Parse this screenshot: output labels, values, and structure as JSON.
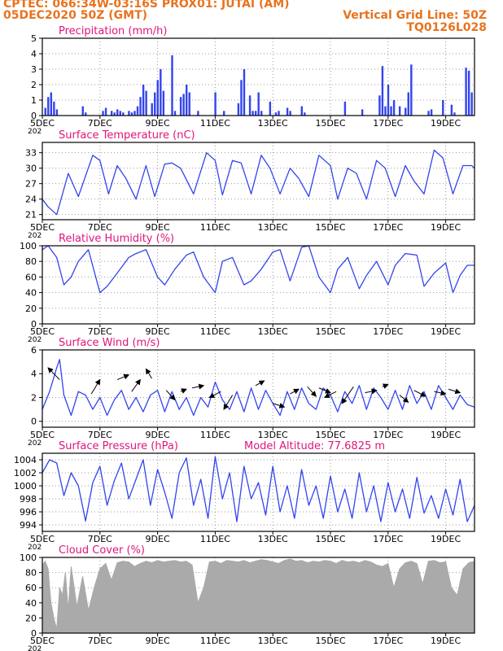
{
  "header": {
    "line1_left": "CPTEC:    066:34W-03:16S   PROX01: JUTAI (AM)",
    "line2_left": "05DEC2020 50Z (GMT)",
    "line2_right": "Vertical Grid Line: 50Z",
    "line3_right": "TQ0126L028"
  },
  "colors": {
    "header": "#e8731f",
    "panel_title": "#e0157b",
    "series": "#3344ee",
    "cloud": "#aaaaaa",
    "wind_arrow": "#000000"
  },
  "x_axis": {
    "tick_labels": [
      "5DEC",
      "7DEC",
      "9DEC",
      "11DEC",
      "13DEC",
      "15DEC",
      "17DEC",
      "19DEC"
    ],
    "tick_positions_days": [
      0,
      2,
      4,
      6,
      8,
      10,
      12,
      14
    ],
    "range_days": [
      0,
      15
    ],
    "clipped_label": "202"
  },
  "chart_data": [
    {
      "id": "precip",
      "type": "bar",
      "title": "Precipitation   (mm/h)",
      "ylim": [
        0,
        5
      ],
      "yticks": [
        "0",
        "1",
        "2",
        "3",
        "4",
        "5"
      ],
      "ytick_values": [
        0,
        1,
        2,
        3,
        4,
        5
      ],
      "x": [
        0.1,
        0.2,
        0.3,
        0.4,
        0.5,
        1.4,
        1.5,
        2.1,
        2.2,
        2.4,
        2.5,
        2.6,
        2.7,
        2.8,
        3.0,
        3.1,
        3.2,
        3.3,
        3.4,
        3.5,
        3.6,
        3.8,
        3.9,
        4.0,
        4.1,
        4.2,
        4.5,
        4.6,
        4.8,
        4.9,
        5.0,
        5.1,
        5.4,
        6.0,
        6.3,
        6.8,
        6.9,
        7.0,
        7.2,
        7.3,
        7.4,
        7.5,
        7.6,
        7.9,
        8.1,
        8.2,
        8.5,
        8.6,
        9.0,
        9.1,
        10.5,
        11.1,
        11.7,
        11.8,
        11.9,
        12.0,
        12.1,
        12.2,
        12.4,
        12.6,
        12.7,
        12.8,
        13.4,
        13.5,
        13.9,
        14.2,
        14.3,
        14.7,
        14.8,
        14.9
      ],
      "values": [
        0.5,
        1.2,
        1.5,
        0.9,
        0.4,
        0.6,
        0.2,
        0.3,
        0.5,
        0.3,
        0.2,
        0.4,
        0.3,
        0.2,
        0.3,
        0.2,
        0.3,
        0.6,
        1.2,
        2.0,
        1.6,
        0.8,
        1.5,
        2.3,
        3.0,
        1.6,
        3.9,
        0.3,
        1.2,
        1.4,
        2.0,
        1.5,
        0.3,
        1.5,
        0.3,
        0.8,
        2.3,
        3.0,
        1.3,
        0.3,
        0.3,
        1.5,
        0.3,
        0.9,
        0.2,
        0.3,
        0.5,
        0.3,
        0.6,
        0.2,
        0.9,
        0.4,
        1.3,
        3.2,
        0.6,
        2.0,
        0.6,
        1.0,
        0.6,
        0.5,
        1.5,
        3.3,
        0.3,
        0.4,
        1.0,
        0.7,
        0.2,
        3.1,
        2.9,
        1.5
      ],
      "grid": true
    },
    {
      "id": "temp",
      "type": "line",
      "title": "Surface Temperature  (nC)",
      "ylim": [
        20,
        35
      ],
      "yticks": [
        "21",
        "24",
        "27",
        "30",
        "33"
      ],
      "ytick_values": [
        21,
        24,
        27,
        30,
        33
      ],
      "x": [
        0.0,
        0.2,
        0.5,
        0.9,
        1.25,
        1.75,
        2.0,
        2.3,
        2.6,
        2.9,
        3.25,
        3.6,
        3.9,
        4.25,
        4.5,
        4.8,
        5.25,
        5.7,
        6.0,
        6.25,
        6.6,
        6.9,
        7.25,
        7.6,
        7.9,
        8.25,
        8.6,
        8.9,
        9.25,
        9.6,
        10.0,
        10.25,
        10.6,
        10.9,
        11.25,
        11.6,
        11.9,
        12.25,
        12.6,
        12.9,
        13.25,
        13.6,
        13.9,
        14.25,
        14.6,
        14.9,
        15.0
      ],
      "values": [
        24,
        22.5,
        21,
        29,
        24.5,
        32.5,
        31.5,
        25,
        30.5,
        28,
        24,
        30.5,
        24.5,
        30.8,
        31,
        30,
        25,
        33,
        31.5,
        24.8,
        31.5,
        31,
        25,
        32.5,
        30,
        25,
        30,
        28,
        24.5,
        32.5,
        30.5,
        24,
        30,
        29,
        24,
        31.5,
        30,
        24.5,
        30.5,
        27.5,
        25,
        33.5,
        32,
        25,
        30.5,
        30.5,
        30
      ],
      "grid": true
    },
    {
      "id": "rh",
      "type": "line",
      "title": "Relative Humidity  (%)",
      "ylim": [
        0,
        100
      ],
      "yticks": [
        "0",
        "20",
        "40",
        "60",
        "80",
        "100"
      ],
      "ytick_values": [
        0,
        20,
        40,
        60,
        80,
        100
      ],
      "x": [
        0.0,
        0.2,
        0.5,
        0.75,
        1.0,
        1.25,
        1.6,
        2.0,
        2.25,
        2.6,
        3.0,
        3.25,
        3.6,
        4.0,
        4.25,
        4.6,
        5.0,
        5.25,
        5.6,
        6.0,
        6.25,
        6.6,
        7.0,
        7.25,
        7.6,
        8.0,
        8.25,
        8.6,
        9.0,
        9.25,
        9.6,
        10.0,
        10.25,
        10.6,
        11.0,
        11.25,
        11.6,
        12.0,
        12.25,
        12.6,
        13.0,
        13.25,
        13.6,
        14.0,
        14.25,
        14.5,
        14.75,
        15.0
      ],
      "values": [
        95,
        100,
        85,
        50,
        60,
        80,
        95,
        40,
        48,
        65,
        85,
        90,
        95,
        60,
        50,
        70,
        88,
        92,
        60,
        40,
        80,
        85,
        50,
        55,
        70,
        92,
        95,
        55,
        98,
        100,
        60,
        40,
        70,
        85,
        45,
        62,
        80,
        50,
        75,
        90,
        88,
        48,
        65,
        78,
        40,
        62,
        75,
        75
      ],
      "grid": true
    },
    {
      "id": "wind",
      "type": "line",
      "title": "Surface Wind  (m/s)",
      "ylim": [
        -0.5,
        6
      ],
      "yticks": [
        "0",
        "2",
        "4",
        "6"
      ],
      "ytick_values": [
        0,
        2,
        4,
        6
      ],
      "x": [
        0.0,
        0.25,
        0.5,
        0.6,
        0.75,
        1.0,
        1.25,
        1.5,
        1.75,
        2.0,
        2.25,
        2.5,
        2.75,
        3.0,
        3.25,
        3.5,
        3.75,
        4.0,
        4.25,
        4.5,
        4.75,
        5.0,
        5.25,
        5.5,
        5.75,
        6.0,
        6.25,
        6.5,
        6.75,
        7.0,
        7.25,
        7.5,
        7.75,
        8.0,
        8.25,
        8.5,
        8.75,
        9.0,
        9.25,
        9.5,
        9.75,
        10.0,
        10.25,
        10.5,
        10.75,
        11.0,
        11.25,
        11.5,
        11.75,
        12.0,
        12.25,
        12.5,
        12.75,
        13.0,
        13.25,
        13.5,
        13.75,
        14.0,
        14.25,
        14.5,
        14.75,
        15.0
      ],
      "values": [
        1.0,
        2.5,
        4.5,
        5.2,
        2.2,
        0.5,
        2.5,
        2.2,
        1.0,
        2.0,
        0.5,
        1.8,
        2.6,
        1.0,
        2.0,
        0.8,
        2.2,
        2.6,
        0.8,
        2.5,
        1.0,
        2.0,
        0.5,
        2.0,
        1.2,
        3.3,
        1.8,
        1.0,
        2.5,
        0.8,
        2.8,
        1.0,
        2.6,
        1.5,
        0.5,
        2.5,
        1.0,
        2.8,
        1.5,
        1.0,
        2.8,
        2.2,
        0.8,
        2.5,
        1.5,
        3.0,
        1.0,
        2.8,
        2.0,
        1.0,
        2.6,
        1.0,
        3.0,
        1.5,
        2.5,
        1.0,
        3.0,
        2.0,
        1.0,
        2.2,
        1.4,
        1.2
      ],
      "arrow_x": [
        0.6,
        1.7,
        2.6,
        3.1,
        3.8,
        4.3,
        4.8,
        5.2,
        6.2,
        6.6,
        7.4,
        8.0,
        8.6,
        9.2,
        9.6,
        10.2,
        10.8,
        11.2,
        11.8,
        12.4,
        12.9,
        13.6,
        14.1
      ],
      "arrow_y": [
        3.5,
        2.3,
        3.5,
        2.5,
        3.6,
        2.6,
        2.5,
        2.8,
        2.5,
        2.2,
        3.0,
        1.5,
        2.3,
        2.9,
        2.8,
        2.5,
        2.9,
        2.4,
        2.9,
        2.2,
        2.6,
        2.5,
        2.7
      ],
      "arrow_dx": [
        -0.4,
        0.3,
        0.4,
        0.3,
        -0.2,
        0.3,
        0.2,
        0.4,
        -0.4,
        -0.3,
        0.3,
        0.4,
        0.3,
        0.3,
        0.4,
        -0.4,
        -0.4,
        0.4,
        0.2,
        0.3,
        0.4,
        0.4,
        0.4
      ],
      "arrow_dy": [
        1.0,
        1.2,
        0.4,
        1.0,
        0.8,
        -0.8,
        0.2,
        0.2,
        -0.5,
        -1.2,
        0.4,
        -0.3,
        0.4,
        -0.8,
        -0.4,
        -0.5,
        -1.4,
        0.2,
        0.2,
        -0.6,
        -0.5,
        -0.2,
        -0.3
      ],
      "grid": true
    },
    {
      "id": "press",
      "type": "line",
      "title": "Surface Pressure  (hPa)",
      "annotation": "Model Altitude:  77.6825  m",
      "ylim": [
        993,
        1005
      ],
      "yticks": [
        "994",
        "996",
        "998",
        "1000",
        "1002",
        "1004"
      ],
      "ytick_values": [
        994,
        996,
        998,
        1000,
        1002,
        1004
      ],
      "x": [
        0.0,
        0.25,
        0.5,
        0.75,
        1.0,
        1.25,
        1.5,
        1.75,
        2.0,
        2.25,
        2.5,
        2.75,
        3.0,
        3.25,
        3.5,
        3.75,
        4.0,
        4.25,
        4.5,
        4.75,
        5.0,
        5.25,
        5.5,
        5.75,
        6.0,
        6.25,
        6.5,
        6.75,
        7.0,
        7.25,
        7.5,
        7.75,
        8.0,
        8.25,
        8.5,
        8.75,
        9.0,
        9.25,
        9.5,
        9.75,
        10.0,
        10.25,
        10.5,
        10.75,
        11.0,
        11.25,
        11.5,
        11.75,
        12.0,
        12.25,
        12.5,
        12.75,
        13.0,
        13.25,
        13.5,
        13.75,
        14.0,
        14.25,
        14.5,
        14.75,
        15.0
      ],
      "values": [
        1002,
        1004,
        1003.5,
        998.5,
        1002,
        1000,
        994.6,
        1000.5,
        1003,
        997,
        1000.8,
        1003.5,
        998,
        1001,
        1004,
        997,
        1002.5,
        999,
        995,
        1002,
        1004.3,
        997,
        1001,
        995,
        1004.5,
        998,
        1002,
        994.5,
        1003,
        998,
        1000.5,
        995.5,
        1003,
        996,
        1000,
        995,
        1002.5,
        997,
        1000,
        995,
        1001.5,
        996,
        999.5,
        995,
        1002,
        996,
        1000,
        994.5,
        1000.5,
        996,
        999.5,
        995,
        1001.3,
        995.8,
        998.5,
        995,
        999.5,
        995.5,
        1001,
        994.5,
        997
      ],
      "grid": true
    },
    {
      "id": "cloud",
      "type": "area",
      "title": "Cloud Cover  (%)",
      "ylim": [
        0,
        100
      ],
      "yticks": [
        "0",
        "20",
        "40",
        "60",
        "80",
        "100"
      ],
      "ytick_values": [
        0,
        20,
        40,
        60,
        80,
        100
      ],
      "x": [
        0.0,
        0.1,
        0.2,
        0.3,
        0.4,
        0.5,
        0.6,
        0.7,
        0.8,
        0.9,
        1.0,
        1.2,
        1.4,
        1.6,
        1.8,
        2.0,
        2.2,
        2.4,
        2.6,
        2.8,
        3.0,
        3.2,
        3.4,
        3.6,
        3.8,
        4.0,
        4.2,
        4.4,
        4.6,
        4.8,
        5.0,
        5.2,
        5.4,
        5.6,
        5.8,
        6.0,
        6.2,
        6.4,
        6.6,
        6.8,
        7.0,
        7.2,
        7.4,
        7.6,
        7.8,
        8.0,
        8.2,
        8.4,
        8.6,
        8.8,
        9.0,
        9.2,
        9.4,
        9.6,
        9.8,
        10.0,
        10.2,
        10.4,
        10.6,
        10.8,
        11.0,
        11.2,
        11.4,
        11.6,
        11.8,
        12.0,
        12.2,
        12.4,
        12.6,
        12.8,
        13.0,
        13.2,
        13.4,
        13.6,
        13.8,
        14.0,
        14.2,
        14.4,
        14.6,
        14.8,
        15.0
      ],
      "values": [
        90,
        95,
        85,
        40,
        20,
        5,
        60,
        50,
        80,
        30,
        88,
        35,
        75,
        30,
        60,
        85,
        92,
        70,
        93,
        95,
        94,
        88,
        92,
        95,
        93,
        96,
        94,
        95,
        96,
        94,
        95,
        90,
        40,
        60,
        94,
        95,
        92,
        96,
        95,
        94,
        96,
        93,
        95,
        97,
        96,
        94,
        92,
        96,
        98,
        95,
        96,
        93,
        95,
        94,
        96,
        95,
        92,
        96,
        94,
        95,
        93,
        96,
        94,
        90,
        88,
        92,
        60,
        85,
        93,
        95,
        92,
        65,
        95,
        96,
        93,
        94,
        60,
        50,
        85,
        93,
        95
      ],
      "grid": true
    }
  ]
}
